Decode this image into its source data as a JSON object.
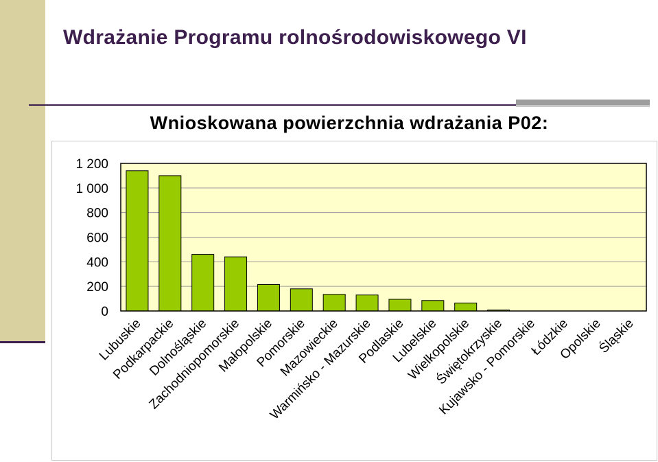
{
  "slide": {
    "title": "Wdrażanie Programu rolnośrodowiskowego VI"
  },
  "chart_data": {
    "type": "bar",
    "title": "Wnioskowana powierzchnia wdrażania P02:",
    "xlabel": "",
    "ylabel": "",
    "ylim": [
      0,
      1200
    ],
    "yticks": [
      "1 200",
      "1 000",
      "800",
      "600",
      "400",
      "200",
      "0"
    ],
    "ytick_values": [
      1200,
      1000,
      800,
      600,
      400,
      200,
      0
    ],
    "categories": [
      "Lubuskie",
      "Podkarpackie",
      "Dolnośląskie",
      "Zachodniopomorskie",
      "Małopolskie",
      "Pomorskie",
      "Mazowieckie",
      "Warmińsko - Mazurskie",
      "Podlaskie",
      "Lubelskie",
      "Wielkopolskie",
      "Świętokrzyskie",
      "Kujawsko - Pomorskie",
      "Łódzkie",
      "Opolskie",
      "Śląskie"
    ],
    "values": [
      1140,
      1100,
      460,
      440,
      215,
      180,
      135,
      130,
      95,
      85,
      65,
      8,
      0,
      0,
      0,
      0
    ],
    "grid": true,
    "legend": "none",
    "bar_color": "#99cc00",
    "plot_bg": "#ffffcc"
  }
}
